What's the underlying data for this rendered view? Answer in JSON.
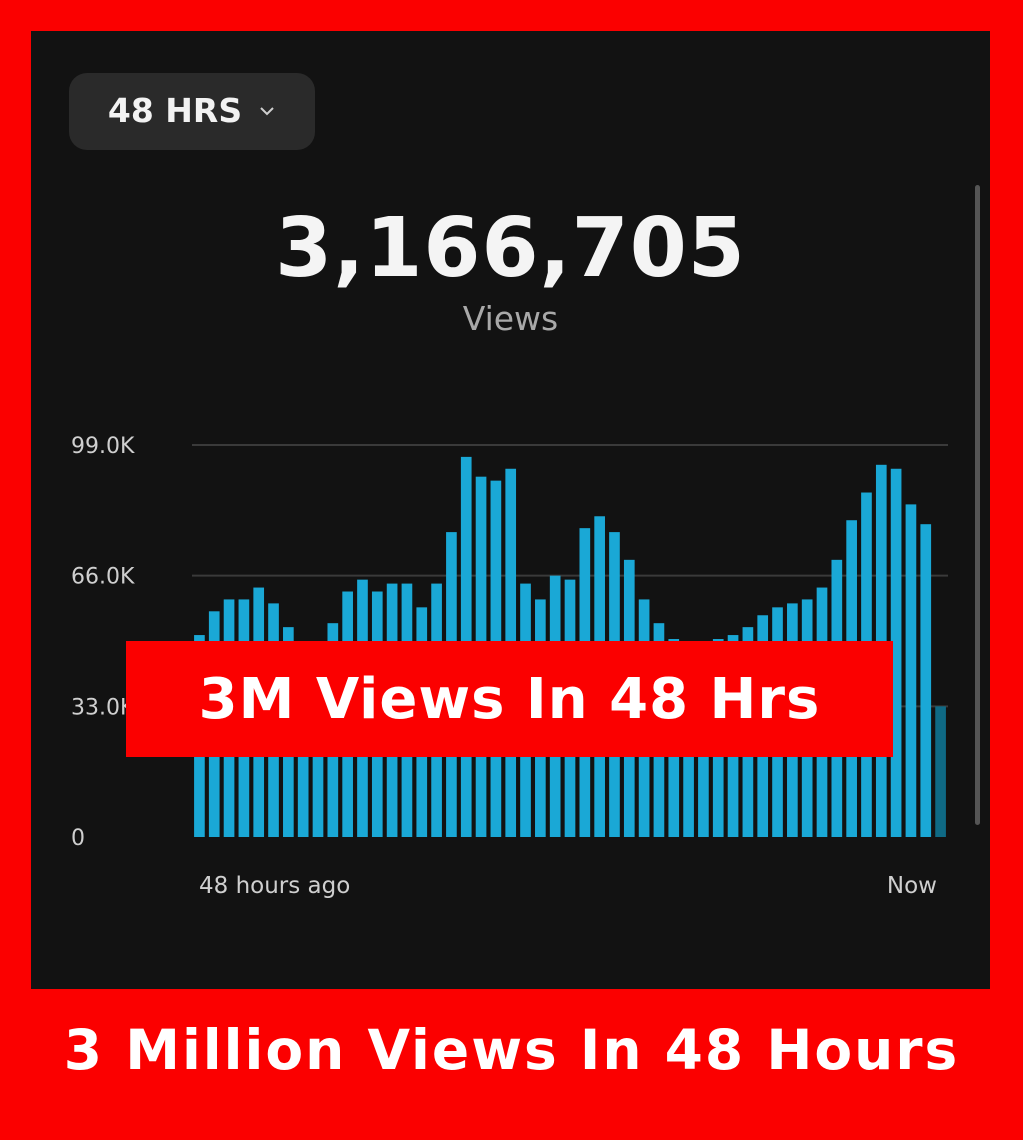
{
  "range_selector": {
    "label": "48 HRS",
    "icon": "chevron-down-icon"
  },
  "summary": {
    "total": "3,166,705",
    "label": "Views"
  },
  "overlay_banner": "3M Views In 48 Hrs",
  "footer_caption": "3 Million Views In 48 Hours",
  "colors": {
    "bar": "#1aa8d6",
    "bar_partial": "#0f6a85",
    "grid": "#3a3a3a",
    "accent": "#fb0000"
  },
  "chart_data": {
    "type": "bar",
    "y_ticks": [
      "99.0K",
      "66.0K",
      "33.0K",
      "0"
    ],
    "y_tick_values": [
      99000,
      66000,
      33000,
      0
    ],
    "ylim": [
      0,
      99000
    ],
    "x_start_label": "48 hours ago",
    "x_end_label": "Now",
    "grid": true,
    "values": [
      51000,
      57000,
      60000,
      60000,
      63000,
      59000,
      53000,
      48000,
      44000,
      54000,
      62000,
      65000,
      62000,
      64000,
      64000,
      58000,
      64000,
      77000,
      96000,
      91000,
      90000,
      93000,
      64000,
      60000,
      66000,
      65000,
      78000,
      81000,
      77000,
      70000,
      60000,
      54000,
      50000,
      48000,
      44000,
      50000,
      51000,
      53000,
      56000,
      58000,
      59000,
      60000,
      63000,
      70000,
      80000,
      87000,
      94000,
      93000,
      84000,
      79000,
      33000
    ]
  }
}
